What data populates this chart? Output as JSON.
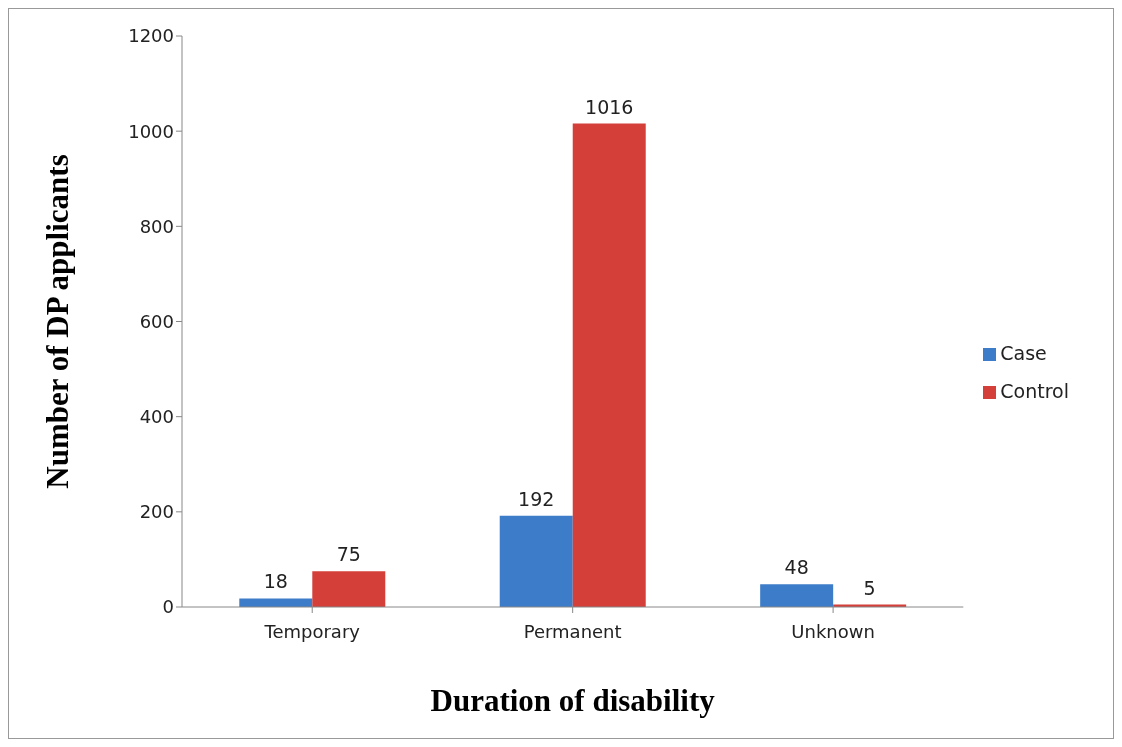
{
  "chart_data": {
    "type": "bar",
    "xlabel": "Duration of disability",
    "ylabel": "Number of DP applicants",
    "categories": [
      "Temporary",
      "Permanent",
      "Unknown"
    ],
    "series": [
      {
        "name": "Case",
        "color": "#3d7cc9",
        "values": [
          18,
          192,
          48
        ]
      },
      {
        "name": "Control",
        "color": "#d43f3a",
        "values": [
          75,
          1016,
          5
        ]
      }
    ],
    "ylim": [
      0,
      1200
    ],
    "yticks": [
      0,
      200,
      400,
      600,
      800,
      1000,
      1200
    ],
    "grid": false,
    "legend": "right",
    "data_labels": true
  }
}
